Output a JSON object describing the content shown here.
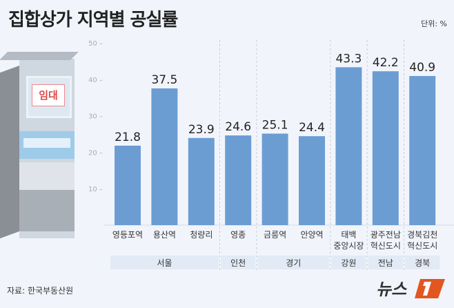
{
  "title": "집합상가 지역별 공실률",
  "unit": "단위: %",
  "source": "자료: 한국부동산원",
  "logo": "뉴스1",
  "sign": "임대",
  "colors": {
    "bar": "#6b9dd3",
    "group_bg": "#e2eaf5",
    "text": "#222"
  },
  "chart_data": {
    "type": "bar",
    "title": "집합상가 지역별 공실률",
    "ylabel": "단위: %",
    "ylim": [
      0,
      50
    ],
    "yticks": [
      10,
      20,
      30,
      40,
      50
    ],
    "categories": [
      [
        "영등포역"
      ],
      [
        "용산역"
      ],
      [
        "청량리"
      ],
      [
        "영종"
      ],
      [
        "금릉역"
      ],
      [
        "안양역"
      ],
      [
        "태백",
        "중앙시장"
      ],
      [
        "광주전남",
        "혁신도시"
      ],
      [
        "경북김천",
        "혁신도시"
      ]
    ],
    "values": [
      21.8,
      37.5,
      23.9,
      24.6,
      25.1,
      24.4,
      43.3,
      42.2,
      40.9
    ],
    "groups": [
      {
        "name": "서울",
        "span": 3
      },
      {
        "name": "인천",
        "span": 1
      },
      {
        "name": "경기",
        "span": 2
      },
      {
        "name": "강원",
        "span": 1
      },
      {
        "name": "전남",
        "span": 1
      },
      {
        "name": "경북",
        "span": 1
      }
    ]
  }
}
